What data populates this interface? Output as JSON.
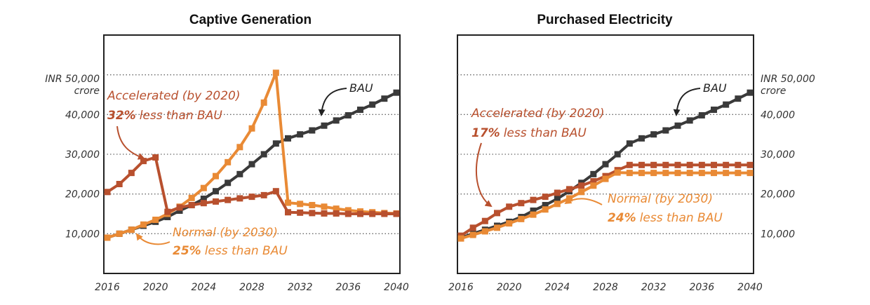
{
  "colors": {
    "bau": "#3a3a3a",
    "accelerated": "#b8502e",
    "normal": "#e98a35",
    "grid": "#666666",
    "frame": "#222222"
  },
  "chart_data": [
    {
      "type": "line",
      "title": "Captive Generation",
      "x": [
        2016,
        2017,
        2018,
        2019,
        2020,
        2021,
        2022,
        2023,
        2024,
        2025,
        2026,
        2027,
        2028,
        2029,
        2030,
        2031,
        2032,
        2033,
        2034,
        2035,
        2036,
        2037,
        2038,
        2039,
        2040
      ],
      "xticks": [
        "2016",
        "2020",
        "2024",
        "2028",
        "2032",
        "2036",
        "2040"
      ],
      "yticks": [
        "10,000",
        "20,000",
        "30,000",
        "40,000"
      ],
      "ytick_values": [
        10000,
        20000,
        30000,
        40000
      ],
      "ytop_label": [
        "INR 50,000",
        "crore"
      ],
      "ylim": [
        0,
        60000
      ],
      "ylabel_side": "left",
      "grid": true,
      "series": [
        {
          "name": "BAU",
          "key": "bau",
          "values": [
            9000,
            10000,
            11000,
            12000,
            13000,
            14200,
            15800,
            17200,
            18800,
            20700,
            22800,
            25000,
            27500,
            30000,
            32700,
            34000,
            35000,
            36000,
            37200,
            38500,
            39800,
            41200,
            42500,
            44000,
            45500
          ]
        },
        {
          "name": "Normal",
          "key": "normal",
          "values": [
            9000,
            10000,
            11000,
            12300,
            13500,
            15000,
            16800,
            19000,
            21500,
            24500,
            28000,
            31800,
            36500,
            43000,
            50500,
            17800,
            17500,
            17200,
            16800,
            16300,
            15900,
            15600,
            15400,
            15200,
            15100
          ]
        },
        {
          "name": "Accelerated",
          "key": "accelerated",
          "values": [
            20500,
            22500,
            25300,
            28300,
            29200,
            15500,
            16600,
            17200,
            17700,
            18100,
            18500,
            18900,
            19300,
            19700,
            20700,
            15400,
            15300,
            15200,
            15100,
            15100,
            15000,
            15000,
            15000,
            15000,
            15000
          ]
        }
      ],
      "annotations": {
        "bau": "BAU",
        "accelerated_line1": "Accelerated (by 2020)",
        "accelerated_pct": "32%",
        "accelerated_rest": "less than BAU",
        "normal_line1": "Normal (by 2030)",
        "normal_pct": "25%",
        "normal_rest": "less than BAU"
      }
    },
    {
      "type": "line",
      "title": "Purchased Electricity",
      "x": [
        2016,
        2017,
        2018,
        2019,
        2020,
        2021,
        2022,
        2023,
        2024,
        2025,
        2026,
        2027,
        2028,
        2029,
        2030,
        2031,
        2032,
        2033,
        2034,
        2035,
        2036,
        2037,
        2038,
        2039,
        2040
      ],
      "xticks": [
        "2016",
        "2020",
        "2024",
        "2028",
        "2032",
        "2036",
        "2040"
      ],
      "yticks": [
        "10,000",
        "20,000",
        "30,000",
        "40,000"
      ],
      "ytick_values": [
        10000,
        20000,
        30000,
        40000
      ],
      "ytop_label": [
        "INR 50,000",
        "crore"
      ],
      "ylim": [
        0,
        60000
      ],
      "ylabel_side": "right",
      "grid": true,
      "series": [
        {
          "name": "BAU",
          "key": "bau",
          "values": [
            9000,
            10000,
            11000,
            12000,
            13000,
            14200,
            15800,
            17200,
            18800,
            20700,
            22800,
            25000,
            27500,
            30000,
            32700,
            34000,
            35000,
            36000,
            37200,
            38500,
            39800,
            41200,
            42500,
            44000,
            45500
          ]
        },
        {
          "name": "Accelerated",
          "key": "accelerated",
          "values": [
            9500,
            11500,
            13200,
            15200,
            16800,
            17700,
            18500,
            19300,
            20300,
            21200,
            22100,
            23200,
            24500,
            26000,
            27300,
            27300,
            27300,
            27300,
            27300,
            27300,
            27300,
            27300,
            27300,
            27300,
            27300
          ]
        },
        {
          "name": "Normal",
          "key": "normal",
          "values": [
            8800,
            9700,
            10600,
            11500,
            12600,
            13700,
            14800,
            16100,
            17500,
            18900,
            20500,
            22100,
            23800,
            25400,
            25300,
            25300,
            25300,
            25300,
            25300,
            25300,
            25300,
            25300,
            25300,
            25300,
            25300
          ]
        }
      ],
      "annotations": {
        "bau": "BAU",
        "accelerated_line1": "Accelerated (by 2020)",
        "accelerated_pct": "17%",
        "accelerated_rest": "less than BAU",
        "normal_line1": "Normal (by 2030)",
        "normal_pct": "24%",
        "normal_rest": "less than BAU"
      }
    }
  ]
}
